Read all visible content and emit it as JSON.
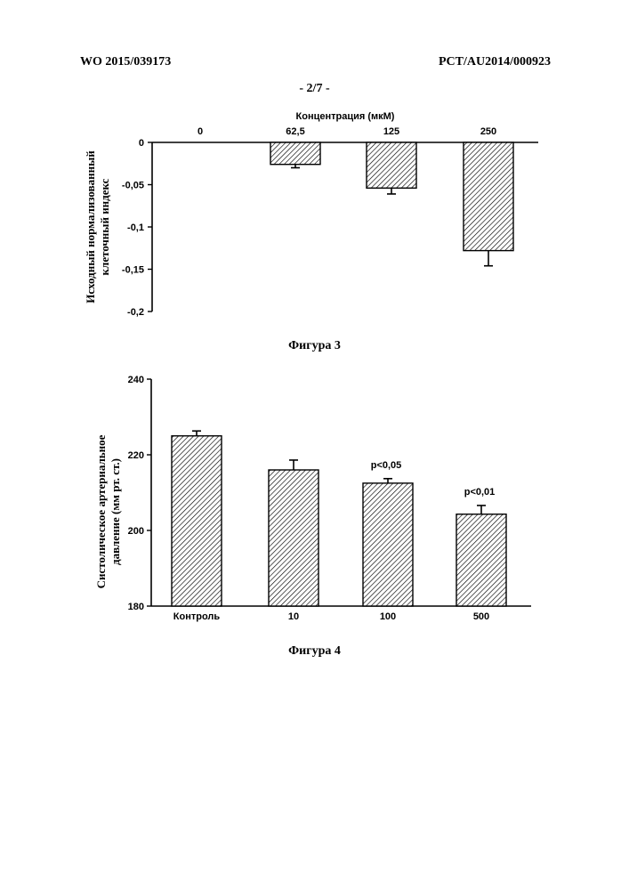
{
  "header": {
    "left": "WO 2015/039173",
    "right": "PCT/AU2014/000923",
    "page": "- 2/7 -"
  },
  "figures": [
    {
      "caption": "Фигура 3"
    },
    {
      "caption": "Фигура 4"
    }
  ],
  "chart_data": [
    {
      "type": "bar",
      "title": "",
      "xlabel": "Концентрация (мкМ)",
      "ylabel": "Исходный нормализованный клеточный индекс",
      "xaxis_position": "top",
      "categories": [
        "0",
        "62,5",
        "125",
        "250"
      ],
      "values": [
        0,
        -0.026,
        -0.054,
        -0.128
      ],
      "errors": [
        0,
        0.004,
        0.007,
        0.018
      ],
      "ylim": [
        -0.2,
        0
      ],
      "yticks": [
        0,
        -0.05,
        -0.1,
        -0.15,
        -0.2
      ],
      "ytick_labels": [
        "0",
        "-0,05",
        "-0,1",
        "-0,15",
        "-0,2"
      ],
      "bar_fill": "diagonal-hatch",
      "grid": false
    },
    {
      "type": "bar",
      "title": "",
      "xlabel": "",
      "ylabel": "Систолическое артериальное давление (мм рт. ст.)",
      "categories": [
        "Контроль",
        "10",
        "100",
        "500"
      ],
      "values": [
        225,
        216,
        212.5,
        204.3
      ],
      "errors": [
        1.3,
        2.6,
        1.2,
        2.3
      ],
      "annotations": [
        "",
        "",
        "p<0,05",
        "p<0,01"
      ],
      "ylim": [
        180,
        240
      ],
      "yticks": [
        180,
        200,
        220,
        240
      ],
      "ytick_labels": [
        "180",
        "200",
        "220",
        "240"
      ],
      "bar_fill": "diagonal-hatch",
      "grid": false
    }
  ]
}
